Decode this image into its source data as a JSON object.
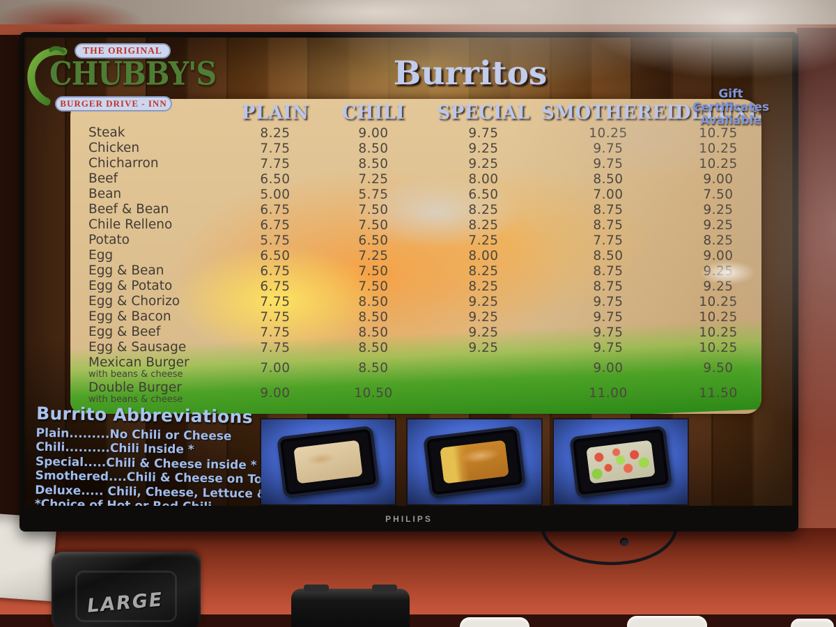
{
  "menu": {
    "logo": {
      "tagline": "THE ORIGINAL",
      "name": "CHUBBY'S",
      "subline": "BURGER DRIVE - INN"
    },
    "title": "Burritos",
    "gift_note": "Gift Certificates Avaliable",
    "columns": [
      "PLAIN",
      "CHILI",
      "SPECIAL",
      "SMOTHERED",
      "DELUXE"
    ],
    "items": [
      {
        "name": "Steak",
        "prices": [
          "8.25",
          "9.00",
          "9.75",
          "10.25",
          "10.75"
        ]
      },
      {
        "name": "Chicken",
        "prices": [
          "7.75",
          "8.50",
          "9.25",
          "9.75",
          "10.25"
        ]
      },
      {
        "name": "Chicharron",
        "prices": [
          "7.75",
          "8.50",
          "9.25",
          "9.75",
          "10.25"
        ]
      },
      {
        "name": "Beef",
        "prices": [
          "6.50",
          "7.25",
          "8.00",
          "8.50",
          "9.00"
        ]
      },
      {
        "name": "Bean",
        "prices": [
          "5.00",
          "5.75",
          "6.50",
          "7.00",
          "7.50"
        ]
      },
      {
        "name": "Beef & Bean",
        "prices": [
          "6.75",
          "7.50",
          "8.25",
          "8.75",
          "9.25"
        ]
      },
      {
        "name": "Chile Relleno",
        "prices": [
          "6.75",
          "7.50",
          "8.25",
          "8.75",
          "9.25"
        ]
      },
      {
        "name": "Potato",
        "prices": [
          "5.75",
          "6.50",
          "7.25",
          "7.75",
          "8.25"
        ]
      },
      {
        "name": "Egg",
        "prices": [
          "6.50",
          "7.25",
          "8.00",
          "8.50",
          "9.00"
        ]
      },
      {
        "name": "Egg & Bean",
        "prices": [
          "6.75",
          "7.50",
          "8.25",
          "8.75",
          "9.25"
        ]
      },
      {
        "name": "Egg & Potato",
        "prices": [
          "6.75",
          "7.50",
          "8.25",
          "8.75",
          "9.25"
        ]
      },
      {
        "name": "Egg & Chorizo",
        "prices": [
          "7.75",
          "8.50",
          "9.25",
          "9.75",
          "10.25"
        ]
      },
      {
        "name": "Egg & Bacon",
        "prices": [
          "7.75",
          "8.50",
          "9.25",
          "9.75",
          "10.25"
        ]
      },
      {
        "name": "Egg & Beef",
        "prices": [
          "7.75",
          "8.50",
          "9.25",
          "9.75",
          "10.25"
        ]
      },
      {
        "name": "Egg & Sausage",
        "prices": [
          "7.75",
          "8.50",
          "9.25",
          "9.75",
          "10.25"
        ]
      },
      {
        "name": "Mexican Burger",
        "note": "with beans & cheese",
        "prices": [
          "7.00",
          "8.50",
          "",
          "9.00",
          "9.50"
        ]
      },
      {
        "name": "Double Burger",
        "note": "with beans & cheese",
        "prices": [
          "9.00",
          "10.50",
          "",
          "11.00",
          "11.50"
        ]
      }
    ],
    "abbreviations": {
      "title": "Burrito Abbreviations",
      "lines": [
        "Plain.........No Chili or Cheese",
        "Chili..........Chili Inside *",
        "Special.....Chili & Cheese inside *",
        "Smothered....Chili & Cheese on Top *",
        "Deluxe..... Chili, Cheese, Lettuce & Tomato on Top*",
        "*Choice of Hot or Red Chili"
      ]
    },
    "photo_labels": [
      "plain burrito",
      "smothered burrito",
      "deluxe burrito"
    ]
  },
  "tv": {
    "brand": "PHILIPS"
  },
  "foreground": {
    "container_label": "LARGE"
  },
  "colors": {
    "header_blue": "#bac6ec",
    "item_text": "#46403a",
    "brand_green": "#4e7d35",
    "pill_red": "#c23129",
    "wall_red": "#b84c32",
    "flame_orange": "#ff9628",
    "grass_green": "#2d8a18",
    "parchment_tan": "#dcbf92"
  }
}
